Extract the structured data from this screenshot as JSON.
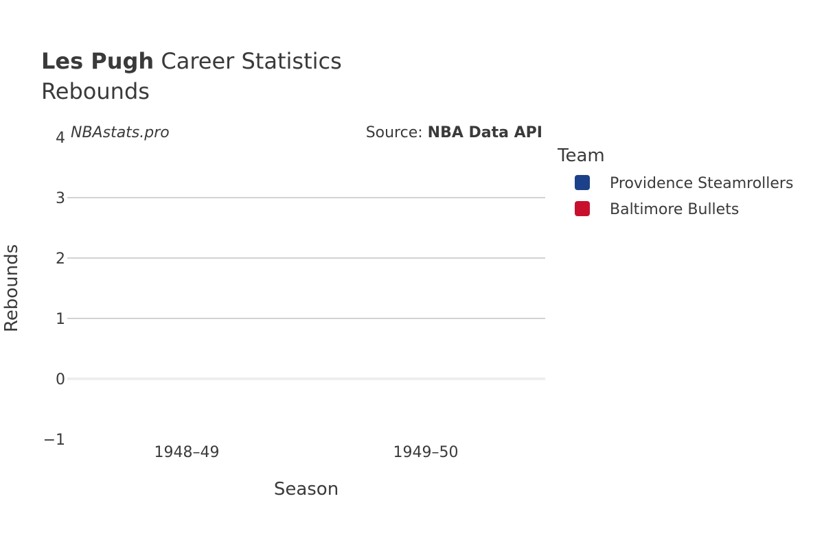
{
  "chart_data": {
    "type": "bar",
    "title_bold": "Les Pugh",
    "title_rest": " Career Statistics",
    "subtitle": "Rebounds",
    "xlabel": "Season",
    "ylabel": "Rebounds",
    "categories": [
      "1948–49",
      "1949–50"
    ],
    "series": [
      {
        "name": "Providence Steamrollers",
        "color": "#1c418a",
        "values": [
          0,
          null
        ]
      },
      {
        "name": "Baltimore Bullets",
        "color": "#c8102e",
        "values": [
          null,
          0
        ]
      }
    ],
    "ylim": [
      -1,
      4
    ],
    "yticks": [
      -1,
      0,
      1,
      2,
      3,
      4
    ],
    "ytick_labels": [
      "−1",
      "0",
      "1",
      "2",
      "3",
      "4"
    ],
    "grid": true,
    "legend": {
      "title": "Team",
      "placement": "right"
    },
    "credit_left": "NBAstats.pro",
    "source_prefix": "Source: ",
    "source_name": "NBA Data API"
  }
}
